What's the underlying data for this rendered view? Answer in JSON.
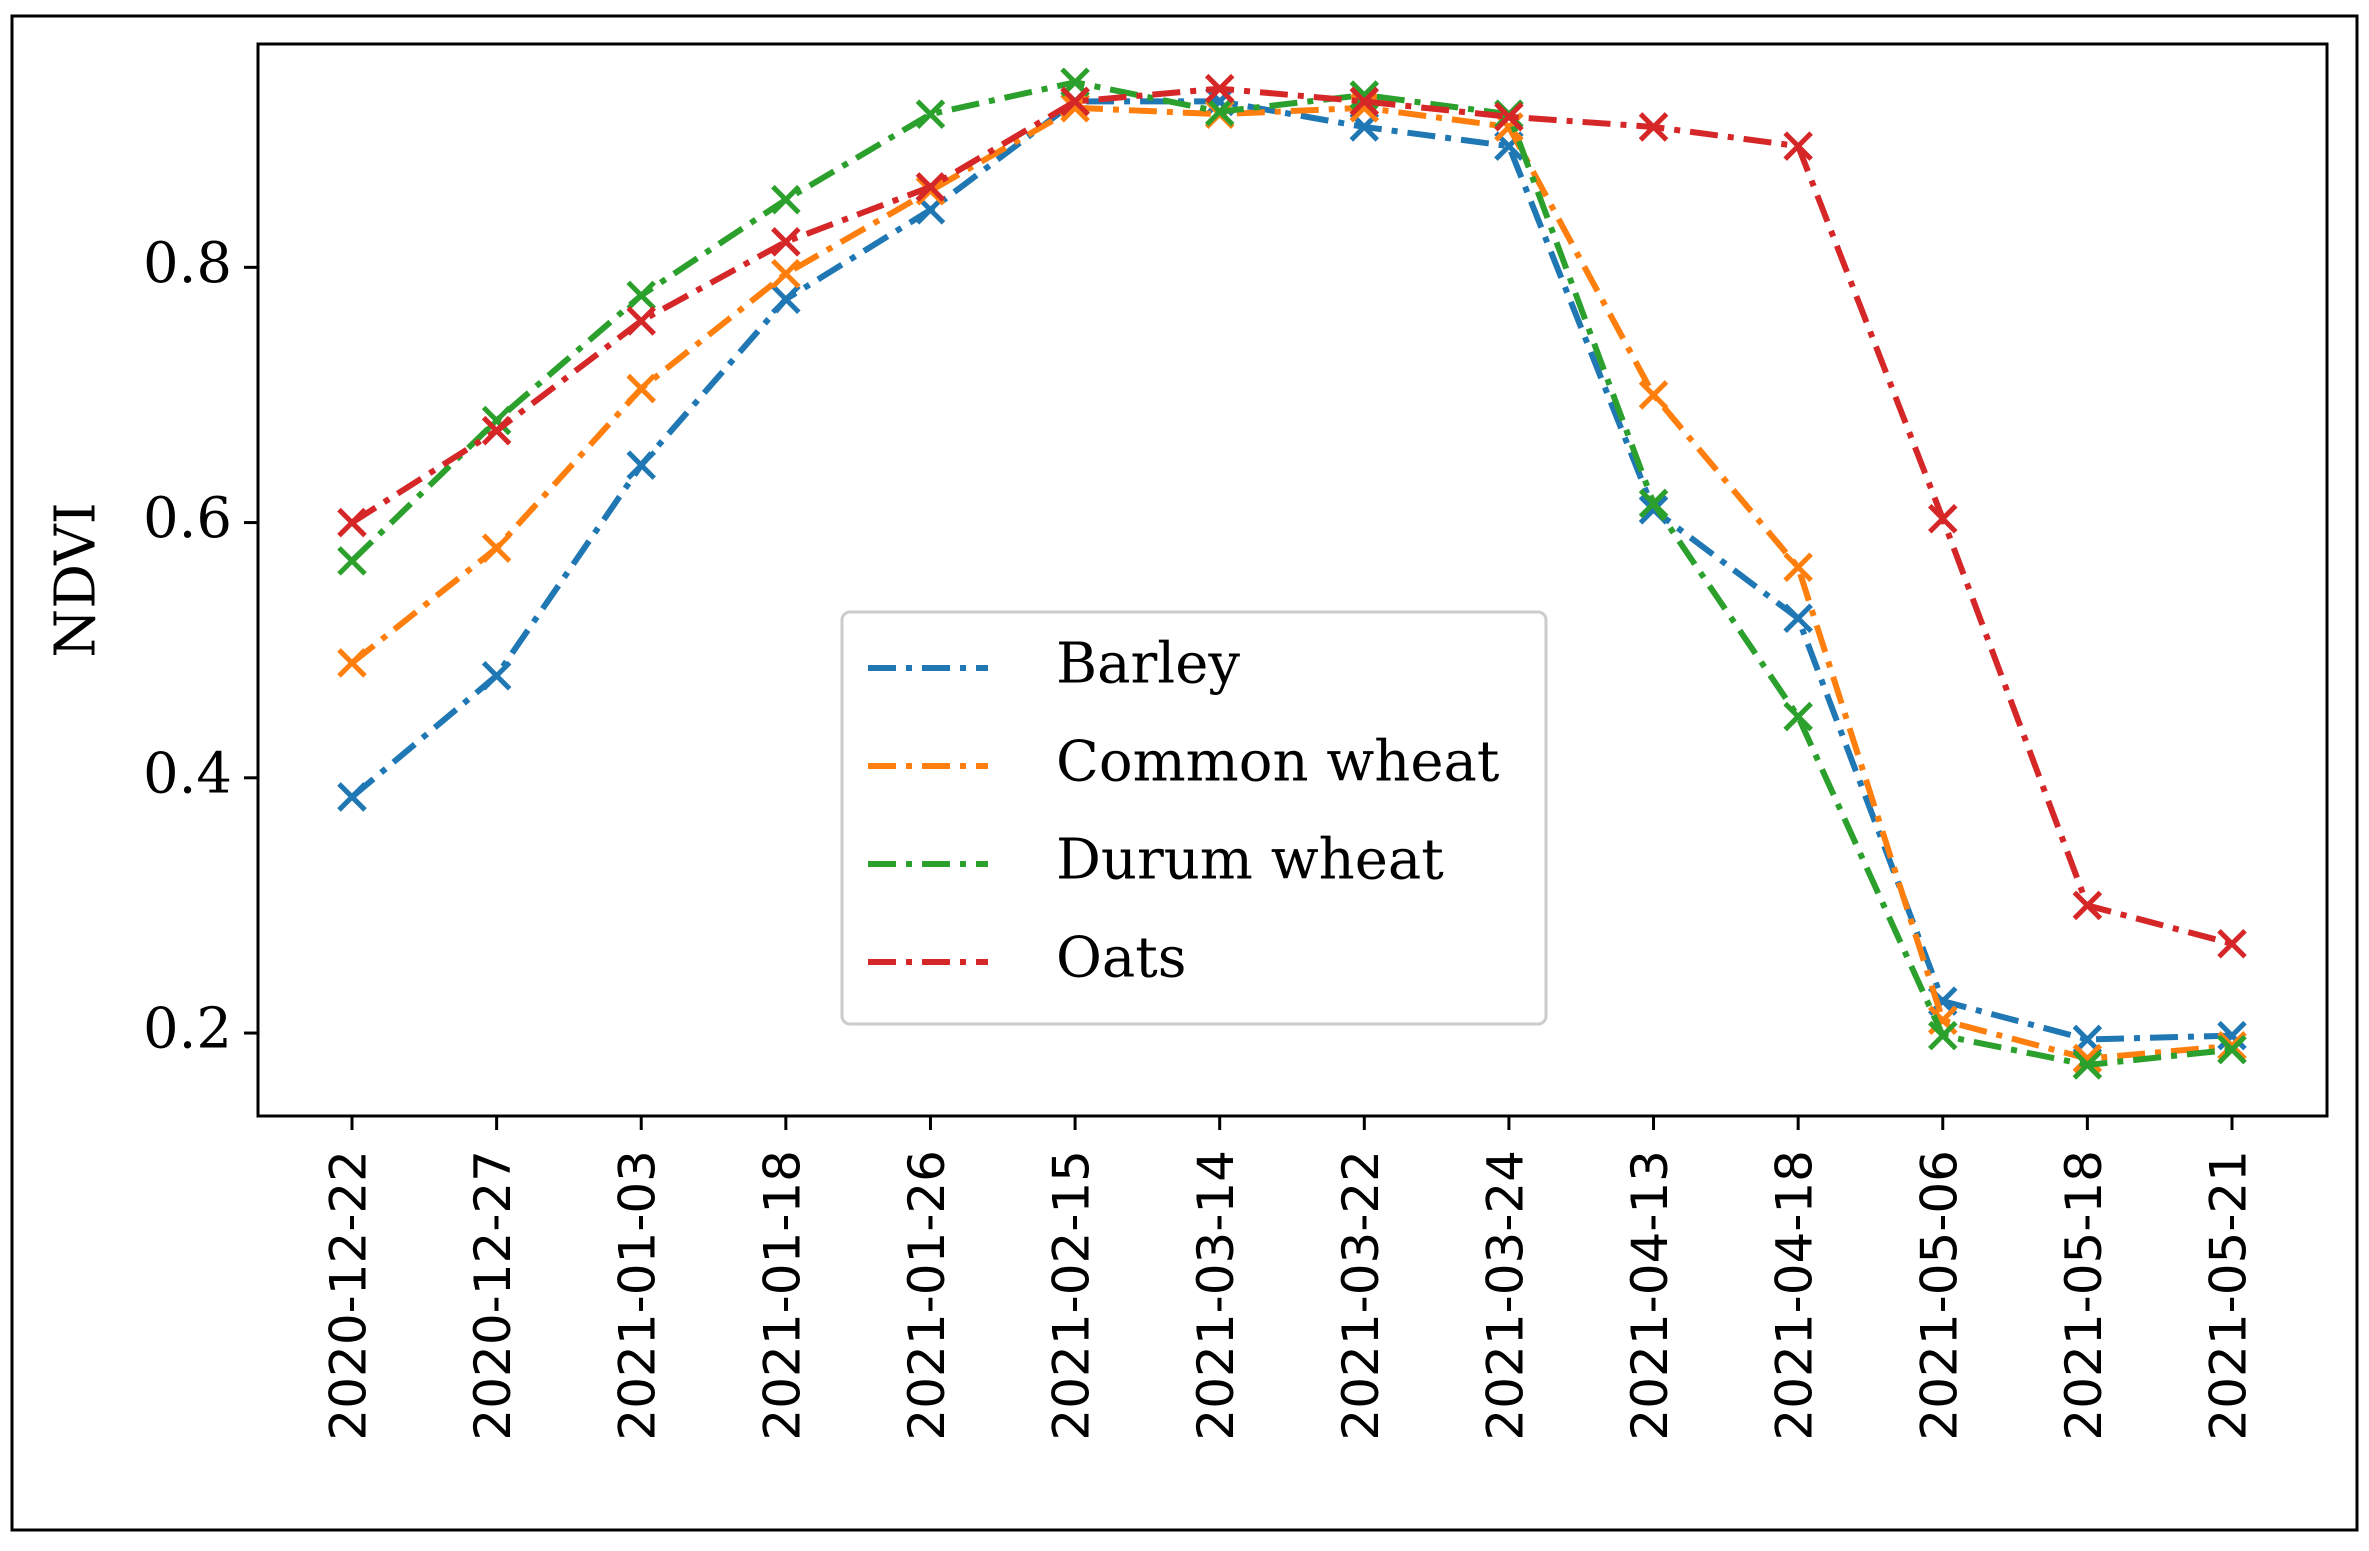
{
  "chart_data": {
    "type": "line",
    "title": "",
    "xlabel": "",
    "ylabel": "NDVI",
    "ylim": [
      0.135,
      0.975
    ],
    "yticks": [
      0.2,
      0.4,
      0.6,
      0.8
    ],
    "ytick_labels": [
      "0.2",
      "0.4",
      "0.6",
      "0.8"
    ],
    "marker": "x",
    "line_style": "dash-dot",
    "legend_position": "center",
    "categories": [
      "2020-12-22",
      "2020-12-27",
      "2021-01-03",
      "2021-01-18",
      "2021-01-26",
      "2021-02-15",
      "2021-03-14",
      "2021-03-22",
      "2021-03-24",
      "2021-04-13",
      "2021-04-18",
      "2021-05-06",
      "2021-05-18",
      "2021-05-21"
    ],
    "series": [
      {
        "name": "Barley",
        "color": "#1f77b4",
        "values": [
          0.385,
          0.48,
          0.645,
          0.775,
          0.845,
          0.93,
          0.93,
          0.91,
          0.895,
          0.61,
          0.525,
          0.225,
          0.195,
          0.198
        ]
      },
      {
        "name": "Common wheat",
        "color": "#ff7f0e",
        "values": [
          0.49,
          0.58,
          0.705,
          0.795,
          0.86,
          0.925,
          0.92,
          0.925,
          0.91,
          0.7,
          0.565,
          0.21,
          0.18,
          0.19
        ]
      },
      {
        "name": "Durum wheat",
        "color": "#2ca02c",
        "values": [
          0.57,
          0.68,
          0.778,
          0.853,
          0.92,
          0.945,
          0.922,
          0.935,
          0.92,
          0.615,
          0.448,
          0.198,
          0.175,
          0.187
        ]
      },
      {
        "name": "Oats",
        "color": "#d62728",
        "values": [
          0.6,
          0.672,
          0.758,
          0.82,
          0.863,
          0.93,
          0.94,
          0.93,
          0.918,
          0.91,
          0.895,
          0.603,
          0.3,
          0.27
        ]
      }
    ]
  }
}
